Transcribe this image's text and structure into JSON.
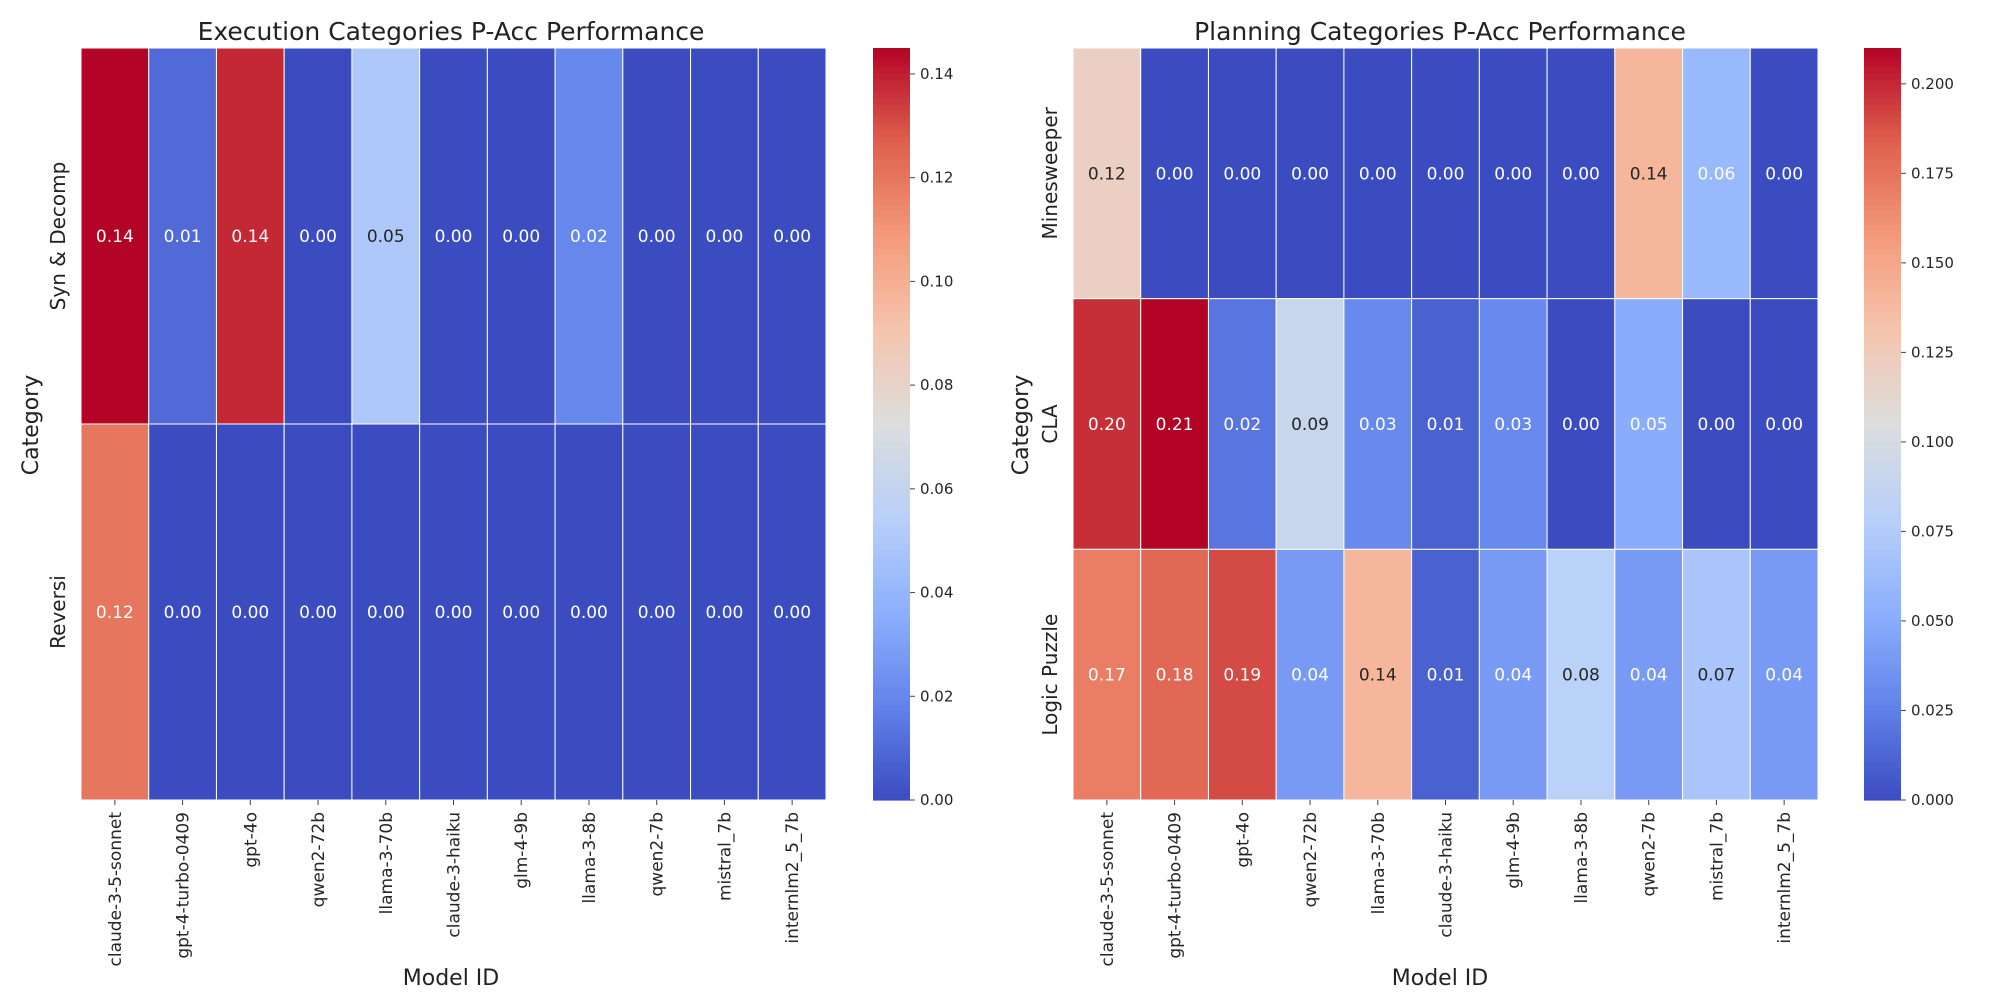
{
  "chart_data": [
    {
      "type": "heatmap",
      "title": "Execution Categories P-Acc Performance",
      "xlabel": "Model ID",
      "ylabel": "Category",
      "categories": [
        "claude-3-5-sonnet",
        "gpt-4-turbo-0409",
        "gpt-4o",
        "qwen2-72b",
        "llama-3-70b",
        "claude-3-haiku",
        "glm-4-9b",
        "llama-3-8b",
        "qwen2-7b",
        "mistral_7b",
        "internlm2_5_7b"
      ],
      "rows": [
        "Syn & Decomp",
        "Reversi"
      ],
      "values": [
        [
          0.145,
          0.01,
          0.138,
          0.0,
          0.05,
          0.0,
          0.0,
          0.02,
          0.0,
          0.0,
          0.0
        ],
        [
          0.12,
          0.0,
          0.0,
          0.0,
          0.0,
          0.0,
          0.0,
          0.0,
          0.0,
          0.0,
          0.0
        ]
      ],
      "cell_labels": [
        [
          "0.14",
          "0.01",
          "0.14",
          "0.00",
          "0.05",
          "0.00",
          "0.00",
          "0.02",
          "0.00",
          "0.00",
          "0.00"
        ],
        [
          "0.12",
          "0.00",
          "0.00",
          "0.00",
          "0.00",
          "0.00",
          "0.00",
          "0.00",
          "0.00",
          "0.00",
          "0.00"
        ]
      ],
      "vmin": 0.0,
      "vmax": 0.145,
      "colorbar_ticks": [
        0.0,
        0.02,
        0.04,
        0.06,
        0.08,
        0.1,
        0.12,
        0.14
      ],
      "colorbar_tick_labels": [
        "0.00",
        "0.02",
        "0.04",
        "0.06",
        "0.08",
        "0.10",
        "0.12",
        "0.14"
      ],
      "colormap": "coolwarm"
    },
    {
      "type": "heatmap",
      "title": "Planning Categories P-Acc Performance",
      "xlabel": "Model ID",
      "ylabel": "Category",
      "categories": [
        "claude-3-5-sonnet",
        "gpt-4-turbo-0409",
        "gpt-4o",
        "qwen2-72b",
        "llama-3-70b",
        "claude-3-haiku",
        "glm-4-9b",
        "llama-3-8b",
        "qwen2-7b",
        "mistral_7b",
        "internlm2_5_7b"
      ],
      "rows": [
        "Minesweeper",
        "CLA",
        "Logic Puzzle"
      ],
      "values": [
        [
          0.12,
          0.0,
          0.0,
          0.0,
          0.0,
          0.0,
          0.0,
          0.0,
          0.14,
          0.06,
          0.0
        ],
        [
          0.198,
          0.21,
          0.02,
          0.09,
          0.03,
          0.01,
          0.03,
          0.0,
          0.05,
          0.0,
          0.0
        ],
        [
          0.17,
          0.18,
          0.19,
          0.04,
          0.14,
          0.01,
          0.04,
          0.08,
          0.04,
          0.07,
          0.04
        ]
      ],
      "cell_labels": [
        [
          "0.12",
          "0.00",
          "0.00",
          "0.00",
          "0.00",
          "0.00",
          "0.00",
          "0.00",
          "0.14",
          "0.06",
          "0.00"
        ],
        [
          "0.20",
          "0.21",
          "0.02",
          "0.09",
          "0.03",
          "0.01",
          "0.03",
          "0.00",
          "0.05",
          "0.00",
          "0.00"
        ],
        [
          "0.17",
          "0.18",
          "0.19",
          "0.04",
          "0.14",
          "0.01",
          "0.04",
          "0.08",
          "0.04",
          "0.07",
          "0.04"
        ]
      ],
      "vmin": 0.0,
      "vmax": 0.21,
      "colorbar_ticks": [
        0.0,
        0.025,
        0.05,
        0.075,
        0.1,
        0.125,
        0.15,
        0.175,
        0.2
      ],
      "colorbar_tick_labels": [
        "0.000",
        "0.025",
        "0.050",
        "0.075",
        "0.100",
        "0.125",
        "0.150",
        "0.175",
        "0.200"
      ],
      "colormap": "coolwarm"
    }
  ]
}
